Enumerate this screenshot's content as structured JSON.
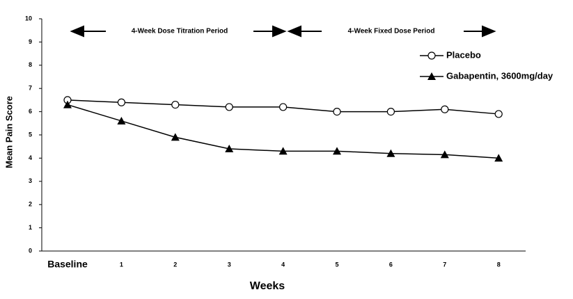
{
  "chart_data": {
    "type": "line",
    "categories": [
      "Baseline",
      "1",
      "2",
      "3",
      "4",
      "5",
      "6",
      "7",
      "8"
    ],
    "series": [
      {
        "name": "Placebo",
        "color": "#000000",
        "marker": "circle",
        "values": [
          6.5,
          6.4,
          6.3,
          6.2,
          6.2,
          6.0,
          6.0,
          6.1,
          5.9
        ]
      },
      {
        "name": "Gabapentin, 3600mg/day",
        "color": "#000000",
        "marker": "triangle",
        "values": [
          6.3,
          5.6,
          4.9,
          4.4,
          4.3,
          4.3,
          4.2,
          4.15,
          4.0
        ]
      }
    ],
    "ylim": [
      0,
      10
    ],
    "yticks": [
      0,
      1,
      2,
      3,
      4,
      5,
      6,
      7,
      8,
      9,
      10
    ],
    "x_label": "Weeks",
    "y_label": "Mean Pain Score",
    "annotations": [
      "4-Week Dose Titration Period",
      "4-Week Fixed Dose Period"
    ],
    "grid": false
  }
}
